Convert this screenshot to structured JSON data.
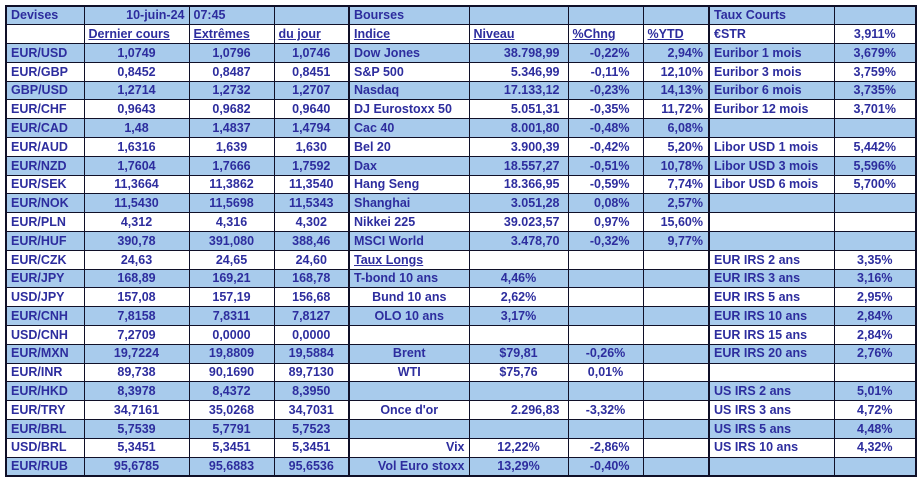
{
  "colors": {
    "row_shade": "#A8CBEC",
    "text_blue": "#2D2D9E",
    "grid_border": "#101028",
    "background": "#FFFFFF"
  },
  "sections": {
    "devises": {
      "title": "Devises",
      "date": "10-juin-24",
      "time": "07:45",
      "col_headers": [
        "Dernier cours",
        "Extrêmes",
        "du jour"
      ],
      "pairs": [
        {
          "name": "EUR/USD",
          "last": "1,0749",
          "high": "1,0796",
          "low": "1,0746"
        },
        {
          "name": "EUR/GBP",
          "last": "0,8452",
          "high": "0,8487",
          "low": "0,8451"
        },
        {
          "name": "GBP/USD",
          "last": "1,2714",
          "high": "1,2732",
          "low": "1,2707"
        },
        {
          "name": "EUR/CHF",
          "last": "0,9643",
          "high": "0,9682",
          "low": "0,9640"
        },
        {
          "name": "EUR/CAD",
          "last": "1,48",
          "high": "1,4837",
          "low": "1,4794"
        },
        {
          "name": "EUR/AUD",
          "last": "1,6316",
          "high": "1,639",
          "low": "1,630"
        },
        {
          "name": "EUR/NZD",
          "last": "1,7604",
          "high": "1,7666",
          "low": "1,7592"
        },
        {
          "name": "EUR/SEK",
          "last": "11,3664",
          "high": "11,3862",
          "low": "11,3540"
        },
        {
          "name": "EUR/NOK",
          "last": "11,5430",
          "high": "11,5698",
          "low": "11,5343"
        },
        {
          "name": "EUR/PLN",
          "last": "4,312",
          "high": "4,316",
          "low": "4,302"
        },
        {
          "name": "EUR/HUF",
          "last": "390,78",
          "high": "391,080",
          "low": "388,46"
        },
        {
          "name": "EUR/CZK",
          "last": "24,63",
          "high": "24,65",
          "low": "24,60"
        },
        {
          "name": "EUR/JPY",
          "last": "168,89",
          "high": "169,21",
          "low": "168,78"
        },
        {
          "name": "USD/JPY",
          "last": "157,08",
          "high": "157,19",
          "low": "156,68"
        },
        {
          "name": "EUR/CNH",
          "last": "7,8158",
          "high": "7,8311",
          "low": "7,8127"
        },
        {
          "name": "USD/CNH",
          "last": "7,2709",
          "high": "0,0000",
          "low": "0,0000"
        },
        {
          "name": "EUR/MXN",
          "last": "19,7224",
          "high": "19,8809",
          "low": "19,5884"
        },
        {
          "name": "EUR/INR",
          "last": "89,738",
          "high": "90,1690",
          "low": "89,7130"
        },
        {
          "name": "EUR/HKD",
          "last": "8,3978",
          "high": "8,4372",
          "low": "8,3950"
        },
        {
          "name": "EUR/TRY",
          "last": "34,7161",
          "high": "35,0268",
          "low": "34,7031"
        },
        {
          "name": "EUR/BRL",
          "last": "5,7539",
          "high": "5,7791",
          "low": "5,7523"
        },
        {
          "name": "USD/BRL",
          "last": "5,3451",
          "high": "5,3451",
          "low": "5,3451"
        },
        {
          "name": "EUR/RUB",
          "last": "95,6785",
          "high": "95,6883",
          "low": "95,6536"
        }
      ]
    },
    "bourses": {
      "title": "Bourses",
      "col_headers": [
        "Indice",
        "Niveau",
        "%Chng",
        "%YTD"
      ],
      "rows": [
        {
          "label": "Dow Jones",
          "niveau": "38.798,99",
          "chng": "-0,22%",
          "ytd": "2,94%",
          "variant": "index"
        },
        {
          "label": "S&P 500",
          "niveau": "5.346,99",
          "chng": "-0,11%",
          "ytd": "12,10%",
          "variant": "index"
        },
        {
          "label": "Nasdaq",
          "niveau": "17.133,12",
          "chng": "-0,23%",
          "ytd": "14,13%",
          "variant": "index"
        },
        {
          "label": "DJ Eurostoxx 50",
          "niveau": "5.051,31",
          "chng": "-0,35%",
          "ytd": "11,72%",
          "variant": "index"
        },
        {
          "label": "Cac 40",
          "niveau": "8.001,80",
          "chng": "-0,48%",
          "ytd": "6,08%",
          "variant": "index"
        },
        {
          "label": "Bel 20",
          "niveau": "3.900,39",
          "chng": "-0,42%",
          "ytd": "5,20%",
          "variant": "index"
        },
        {
          "label": "Dax",
          "niveau": "18.557,27",
          "chng": "-0,51%",
          "ytd": "10,78%",
          "variant": "index"
        },
        {
          "label": "Hang Seng",
          "niveau": "18.366,95",
          "chng": "-0,59%",
          "ytd": "7,74%",
          "variant": "index"
        },
        {
          "label": "Shanghai",
          "niveau": "3.051,28",
          "chng": "0,08%",
          "ytd": "2,57%",
          "variant": "index"
        },
        {
          "label": "Nikkei 225",
          "niveau": "39.023,57",
          "chng": "0,97%",
          "ytd": "15,60%",
          "variant": "index"
        },
        {
          "label": "MSCI World",
          "niveau": "3.478,70",
          "chng": "-0,32%",
          "ytd": "9,77%",
          "variant": "index"
        },
        {
          "label": "Taux Longs",
          "niveau": "",
          "chng": "",
          "ytd": "",
          "variant": "subheader"
        },
        {
          "label": "T-bond 10 ans",
          "niveau": "4,46%",
          "chng": "",
          "ytd": "",
          "variant": "rate-left"
        },
        {
          "label": "Bund 10 ans",
          "niveau": "2,62%",
          "chng": "",
          "ytd": "",
          "variant": "rate-center"
        },
        {
          "label": "OLO 10 ans",
          "niveau": "3,17%",
          "chng": "",
          "ytd": "",
          "variant": "rate-center"
        },
        {
          "label": "",
          "niveau": "",
          "chng": "",
          "ytd": "",
          "variant": "empty"
        },
        {
          "label": "Brent",
          "niveau": "$79,81",
          "chng": "-0,26%",
          "ytd": "",
          "variant": "commodity"
        },
        {
          "label": "WTI",
          "niveau": "$75,76",
          "chng": "0,01%",
          "ytd": "",
          "variant": "commodity"
        },
        {
          "label": "",
          "niveau": "",
          "chng": "",
          "ytd": "",
          "variant": "empty"
        },
        {
          "label": "Once d'or",
          "niveau": "2.296,83",
          "chng": "-3,32%",
          "ytd": "",
          "variant": "gold"
        },
        {
          "label": "",
          "niveau": "",
          "chng": "",
          "ytd": "",
          "variant": "empty"
        },
        {
          "label": "Vix",
          "niveau": "12,22%",
          "chng": "-2,86%",
          "ytd": "",
          "variant": "vol"
        },
        {
          "label": "Vol Euro stoxx",
          "niveau": "13,29%",
          "chng": "-0,40%",
          "ytd": "",
          "variant": "vol"
        }
      ]
    },
    "taux_courts": {
      "title": "Taux Courts",
      "rows": [
        {
          "label": "€STR",
          "value": "3,911%"
        },
        {
          "label": "Euribor 1 mois",
          "value": "3,679%"
        },
        {
          "label": "Euribor 3 mois",
          "value": "3,759%"
        },
        {
          "label": "Euribor 6 mois",
          "value": "3,735%"
        },
        {
          "label": "Euribor 12 mois",
          "value": "3,701%"
        },
        {
          "label": "",
          "value": ""
        },
        {
          "label": "Libor USD 1 mois",
          "value": "5,442%"
        },
        {
          "label": "Libor USD 3 mois",
          "value": "5,596%"
        },
        {
          "label": "Libor USD 6 mois",
          "value": "5,700%"
        },
        {
          "label": "",
          "value": ""
        },
        {
          "label": "",
          "value": ""
        },
        {
          "label": "",
          "value": ""
        },
        {
          "label": "EUR IRS 2 ans",
          "value": "3,35%"
        },
        {
          "label": "EUR IRS 3 ans",
          "value": "3,16%"
        },
        {
          "label": "EUR IRS 5 ans",
          "value": "2,95%"
        },
        {
          "label": "EUR IRS 10 ans",
          "value": "2,84%"
        },
        {
          "label": "EUR IRS 15 ans",
          "value": "2,84%"
        },
        {
          "label": "EUR IRS 20 ans",
          "value": "2,76%"
        },
        {
          "label": "",
          "value": ""
        },
        {
          "label": "US IRS 2 ans",
          "value": "5,01%"
        },
        {
          "label": "US IRS 3 ans",
          "value": "4,72%"
        },
        {
          "label": "US IRS 5 ans",
          "value": "4,48%"
        },
        {
          "label": "US IRS 10 ans",
          "value": "4,32%"
        },
        {
          "label": "",
          "value": ""
        }
      ]
    }
  }
}
